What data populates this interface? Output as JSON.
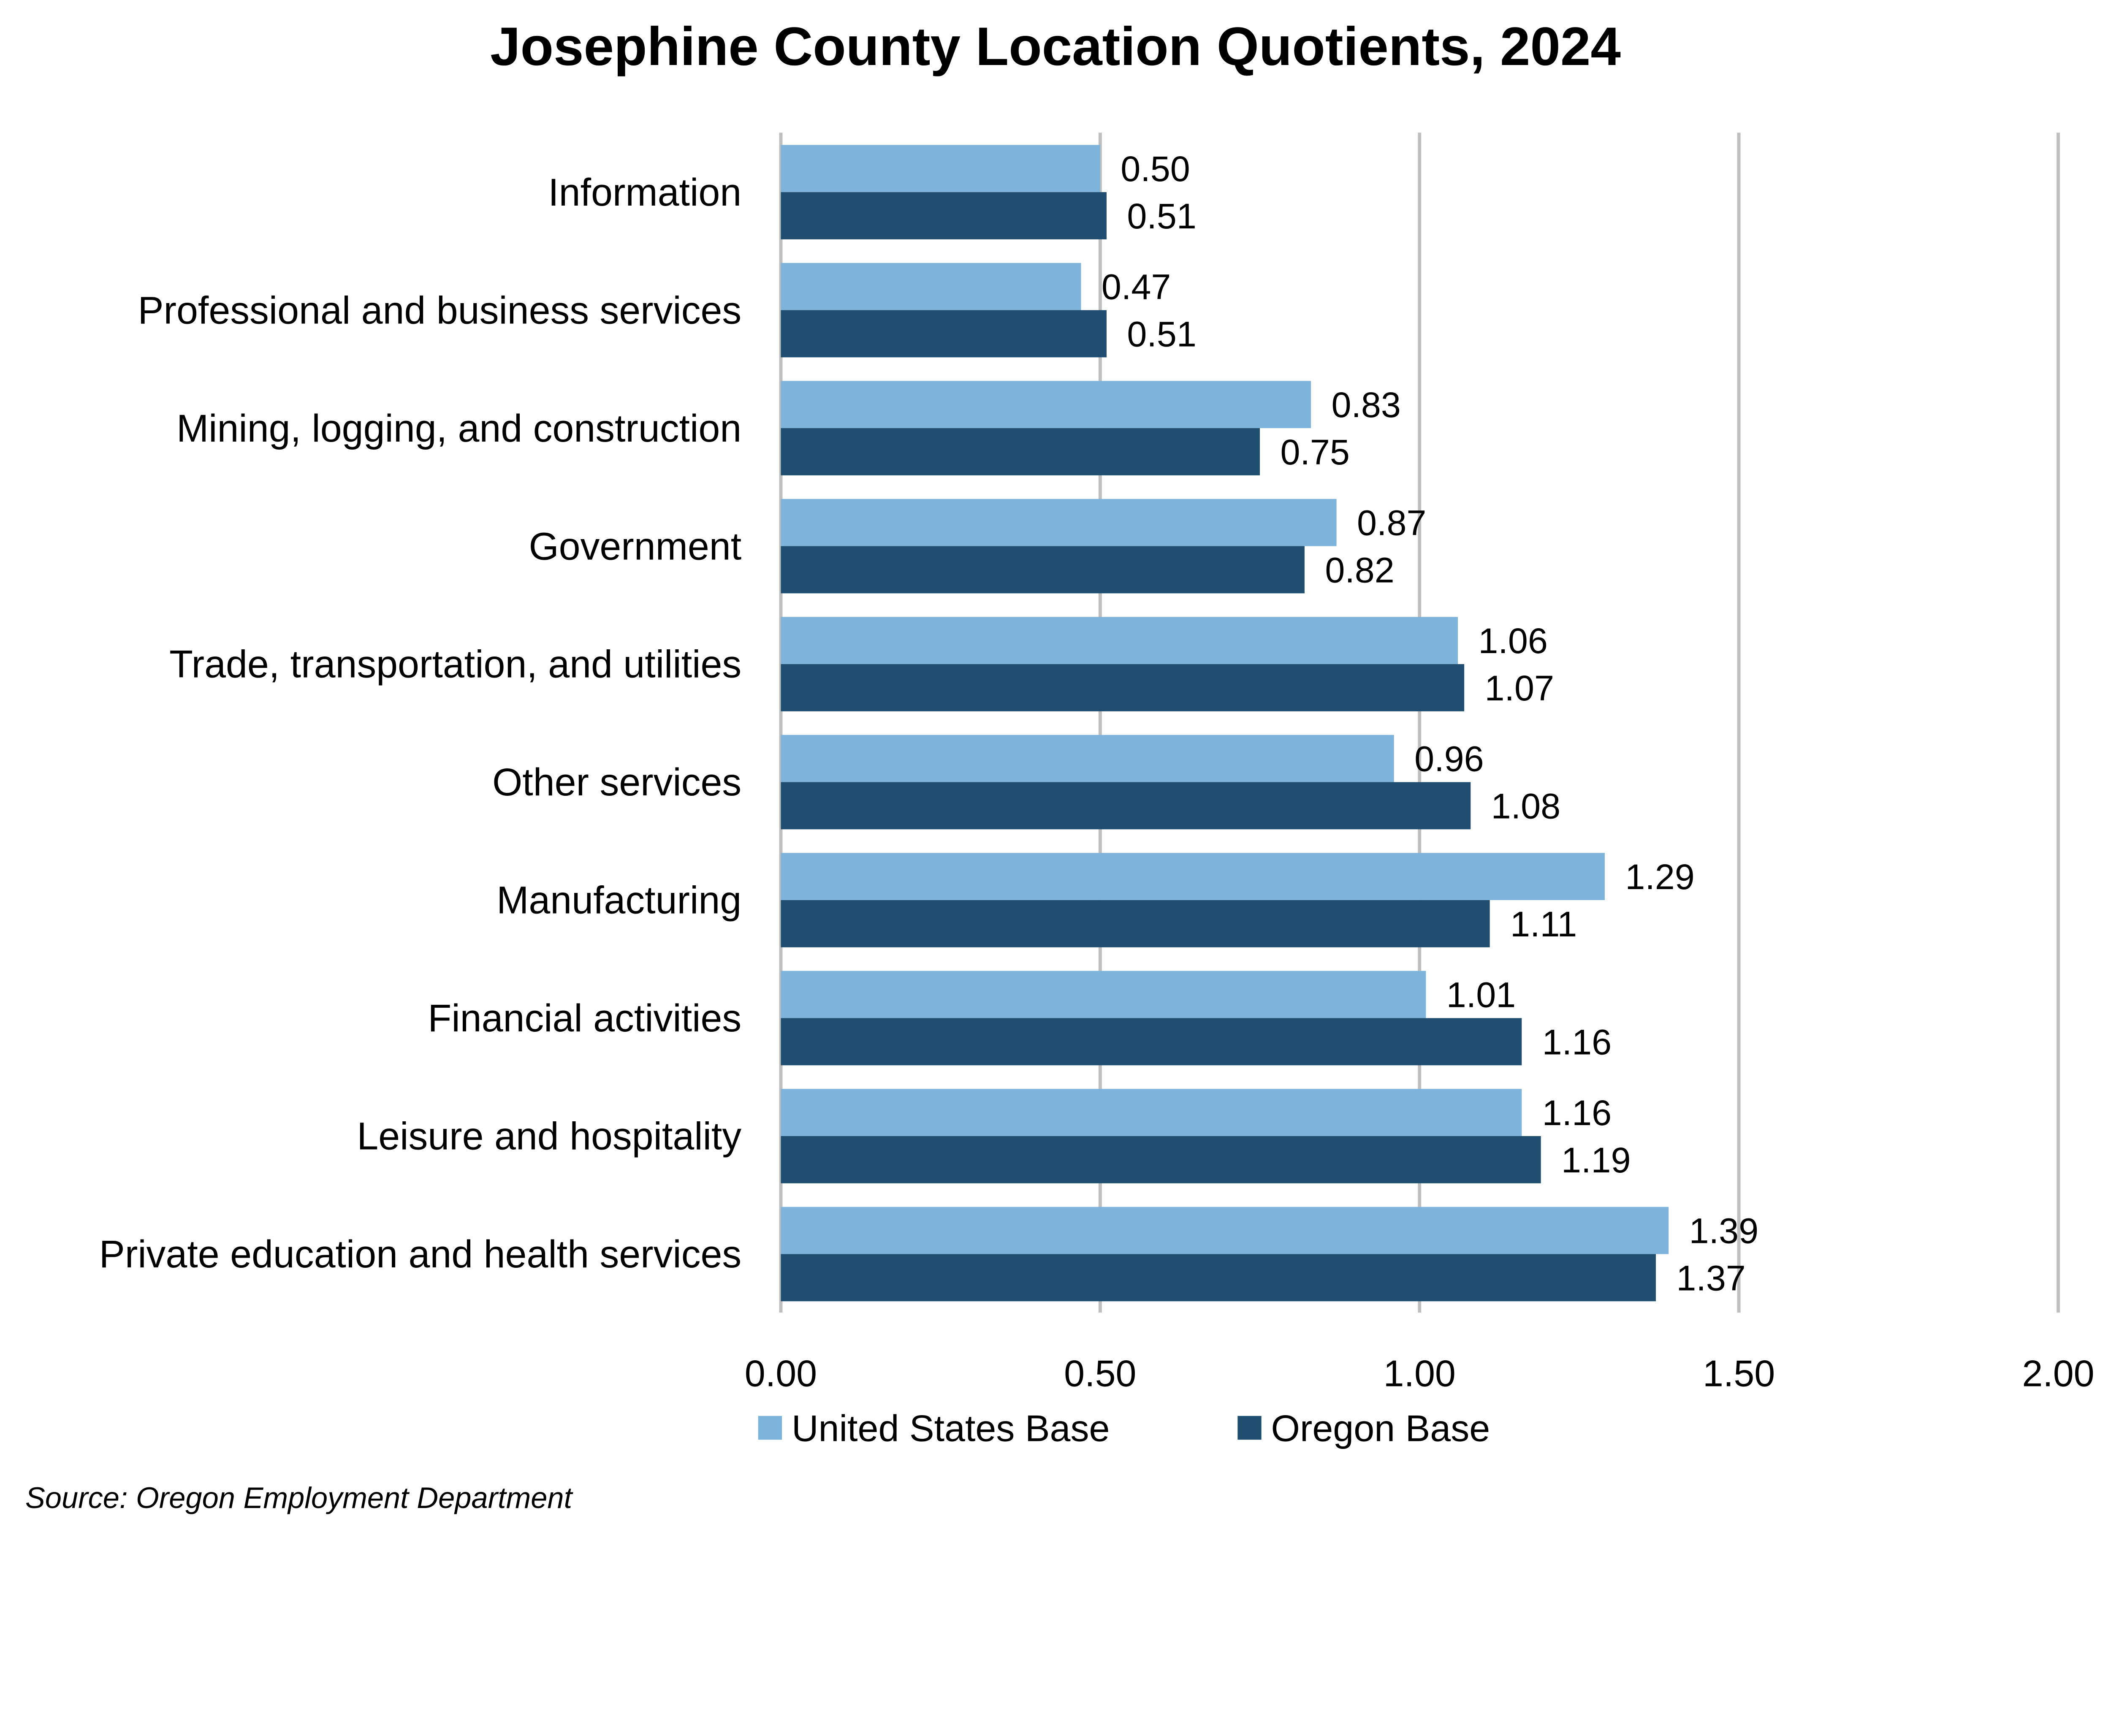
{
  "chart_data": {
    "type": "bar",
    "orientation": "horizontal",
    "title": "Josephine County Location Quotients, 2024",
    "categories": [
      "Information",
      "Professional and business services",
      "Mining, logging, and construction",
      "Government",
      "Trade, transportation, and utilities",
      "Other services",
      "Manufacturing",
      "Financial activities",
      "Leisure and hospitality",
      "Private education and health services"
    ],
    "series": [
      {
        "name": "United States Base",
        "color": "#7EB3DB",
        "values": [
          0.5,
          0.47,
          0.83,
          0.87,
          1.06,
          0.96,
          1.29,
          1.01,
          1.16,
          1.39
        ]
      },
      {
        "name": "Oregon Base",
        "color": "#1F4E70",
        "values": [
          0.51,
          0.51,
          0.75,
          0.82,
          1.07,
          1.08,
          1.11,
          1.16,
          1.19,
          1.37
        ]
      }
    ],
    "xlim": [
      0,
      2.0
    ],
    "xticks": [
      "0.00",
      "0.50",
      "1.00",
      "1.50",
      "2.00"
    ],
    "xlabel": "",
    "ylabel": "",
    "grid": "vertical",
    "legend": "bottom",
    "source": "Source: Oregon Employment Department"
  }
}
